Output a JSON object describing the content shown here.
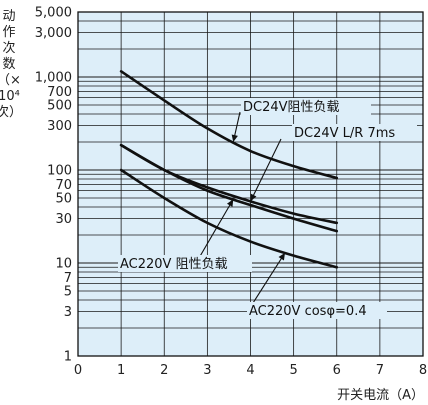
{
  "chart_data": {
    "type": "line",
    "y_scale": "log",
    "grid": true,
    "xlim": [
      0,
      8
    ],
    "ylim": [
      1,
      5000
    ],
    "x_ticks": [
      "0",
      "1",
      "2",
      "3",
      "4",
      "5",
      "6",
      "7",
      "8"
    ],
    "y_ticks": [
      {
        "value": 5000,
        "label": "5,000"
      },
      {
        "value": 3000,
        "label": "3,000"
      },
      {
        "value": 1000,
        "label": "1,000"
      },
      {
        "value": 700,
        "label": "700"
      },
      {
        "value": 500,
        "label": "500"
      },
      {
        "value": 300,
        "label": "300"
      },
      {
        "value": 100,
        "label": "100"
      },
      {
        "value": 70,
        "label": "70"
      },
      {
        "value": 50,
        "label": "50"
      },
      {
        "value": 30,
        "label": "30"
      },
      {
        "value": 10,
        "label": "10"
      },
      {
        "value": 7,
        "label": "7"
      },
      {
        "value": 5,
        "label": "5"
      },
      {
        "value": 3,
        "label": "3"
      },
      {
        "value": 1,
        "label": "1"
      }
    ],
    "ylabel_lines": [
      "动",
      "作",
      "次",
      "数",
      "（×",
      "10⁴",
      "次）"
    ],
    "xlabel": "开关电流（A）",
    "series": [
      {
        "name": "DC24V阻性负载",
        "x": [
          1,
          2,
          3,
          4,
          5,
          6
        ],
        "y": [
          1150,
          560,
          280,
          160,
          110,
          82
        ]
      },
      {
        "name": "DC24V L/R 7ms",
        "x": [
          1,
          2,
          3,
          4,
          5,
          6
        ],
        "y": [
          185,
          100,
          65,
          46,
          34,
          27
        ]
      },
      {
        "name": "AC220V 阻性负载",
        "x": [
          1,
          2,
          3,
          4,
          5,
          6
        ],
        "y": [
          185,
          100,
          60,
          42,
          30,
          22
        ]
      },
      {
        "name": "AC220V cosφ=0.4",
        "x": [
          1,
          2,
          3,
          4,
          5,
          6
        ],
        "y": [
          100,
          50,
          27,
          17,
          12,
          9
        ]
      }
    ],
    "annotations": [
      {
        "text": "DC24V阻性负载",
        "series": 0,
        "at_x": 3.6
      },
      {
        "text": "DC24V L/R 7ms",
        "series": 1,
        "at_x": 4.0
      },
      {
        "text": "AC220V 阻性负载",
        "series": 2,
        "at_x": 3.6
      },
      {
        "text": "AC220V cosφ=0.4",
        "series": 3,
        "at_x": 4.8
      }
    ],
    "colors": {
      "plot_background": "#ddeef9",
      "grid": "#1a1a1a",
      "curve": "#111111"
    }
  }
}
